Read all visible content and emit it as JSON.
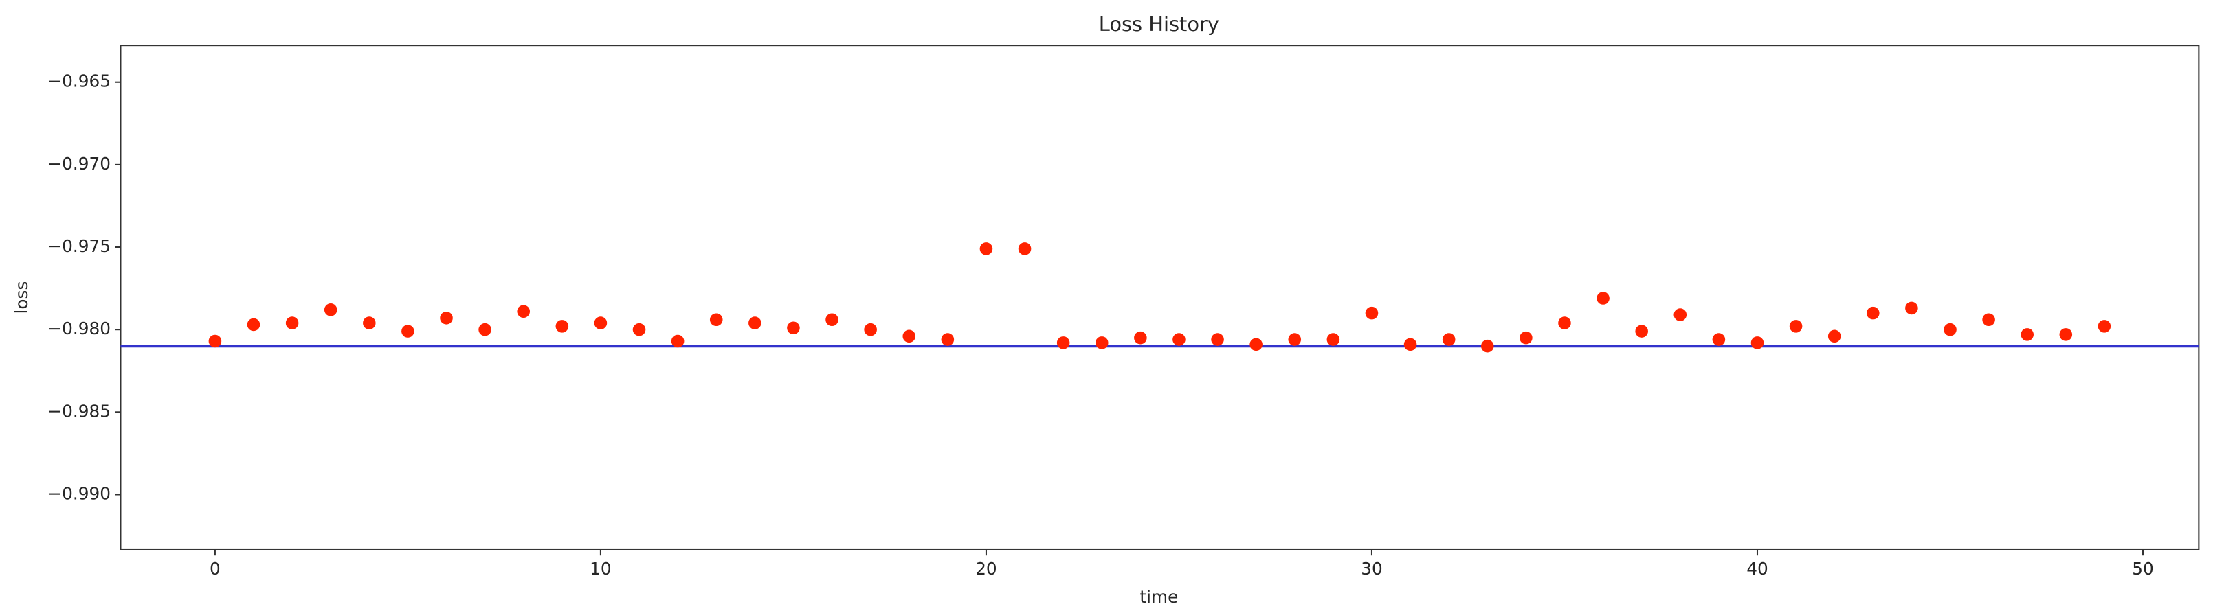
{
  "chart_data": {
    "type": "scatter",
    "title": "Loss History",
    "x_label": "time",
    "y_label": "loss",
    "x": [
      0,
      1,
      2,
      3,
      4,
      5,
      6,
      7,
      8,
      9,
      10,
      11,
      12,
      13,
      14,
      15,
      16,
      17,
      18,
      19,
      20,
      21,
      22,
      23,
      24,
      25,
      26,
      27,
      28,
      29,
      30,
      31,
      32,
      33,
      34,
      35,
      36,
      37,
      38,
      39,
      40,
      41,
      42,
      43,
      44,
      45,
      46,
      47,
      48,
      49
    ],
    "series": [
      {
        "color": "#ff2200",
        "values": [
          -0.9807,
          -0.9797,
          -0.9796,
          -0.9788,
          -0.9796,
          -0.9801,
          -0.9793,
          -0.98,
          -0.9789,
          -0.9798,
          -0.9796,
          -0.98,
          -0.9807,
          -0.9794,
          -0.9796,
          -0.9799,
          -0.9794,
          -0.98,
          -0.9804,
          -0.9806,
          -0.9751,
          -0.9751,
          -0.9808,
          -0.9808,
          -0.9805,
          -0.9806,
          -0.9806,
          -0.9809,
          -0.9806,
          -0.9806,
          -0.979,
          -0.9809,
          -0.9806,
          -0.981,
          -0.9805,
          -0.9796,
          -0.9781,
          -0.9801,
          -0.9791,
          -0.9806,
          -0.9808,
          -0.9798,
          -0.9804,
          -0.979,
          -0.9787,
          -0.98,
          -0.9794,
          -0.9803,
          -0.9803,
          -0.9798
        ]
      }
    ],
    "hline": {
      "value": -0.981,
      "color": "#3333cc"
    },
    "xlim": [
      -2.45,
      51.45
    ],
    "ylim": [
      -0.99335,
      -0.96277
    ],
    "xticks": [
      0,
      10,
      20,
      30,
      40,
      50
    ],
    "yticks": [
      {
        "value": -0.99,
        "label": "−0.990"
      },
      {
        "value": -0.985,
        "label": "−0.985"
      },
      {
        "value": -0.98,
        "label": "−0.980"
      },
      {
        "value": -0.975,
        "label": "−0.975"
      },
      {
        "value": -0.97,
        "label": "−0.970"
      },
      {
        "value": -0.965,
        "label": "−0.965"
      }
    ]
  }
}
